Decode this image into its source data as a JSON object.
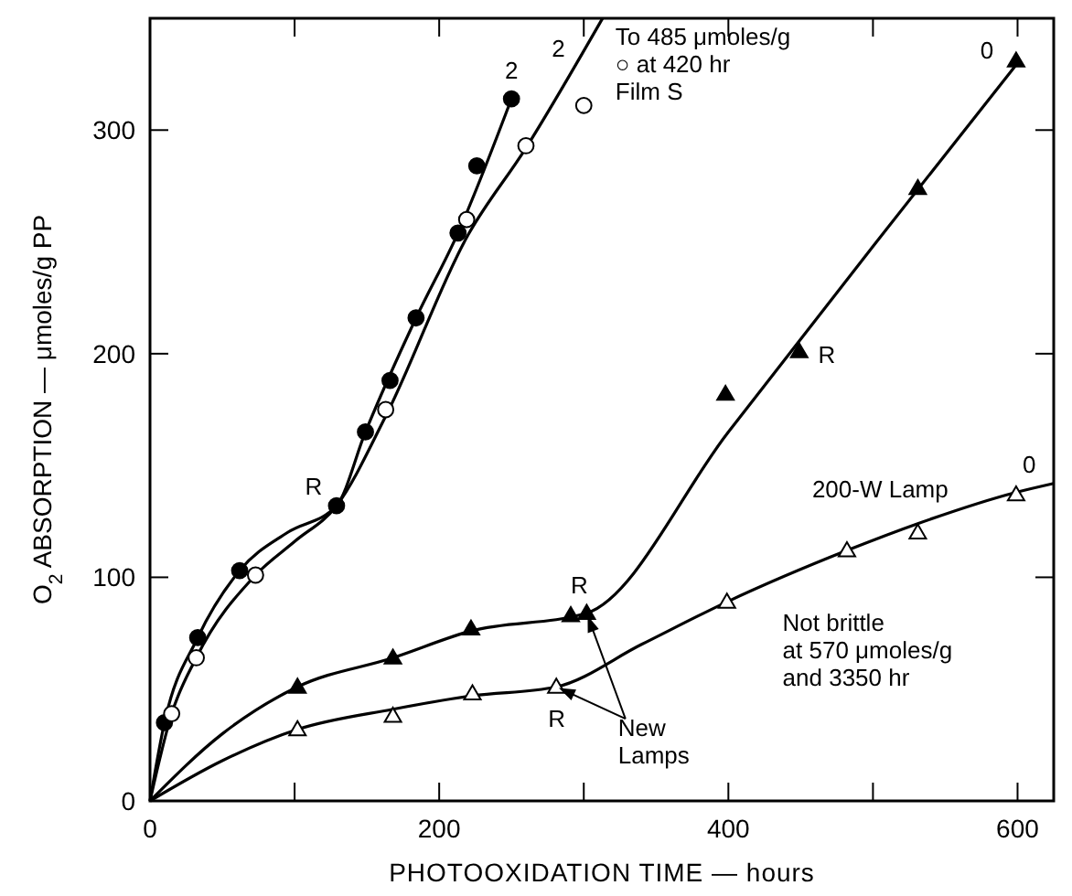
{
  "chart_data": {
    "type": "scatter",
    "xlabel": "PHOTOOXIDATION TIME — hours",
    "ylabel": "O$_{2}$ ABSORPTION — μmoles/g PP",
    "xlim": [
      0,
      625
    ],
    "ylim": [
      0,
      350
    ],
    "xticks": [
      0,
      {
        "value": 100,
        "label": null
      },
      200,
      {
        "value": 300,
        "label": null
      },
      400,
      {
        "value": 500,
        "label": null
      },
      600
    ],
    "yticks": [
      0,
      100,
      200,
      300
    ],
    "grid": false,
    "series": [
      {
        "type": "line",
        "color": "#000000",
        "marker": "none",
        "x": [
          0,
          10,
          33,
          62,
          95,
          129,
          149,
          184,
          213,
          250
        ],
        "values": [
          0,
          35,
          73,
          103,
          120,
          132,
          165,
          216,
          254,
          314
        ]
      },
      {
        "type": "line",
        "color": "#000000",
        "marker": "none",
        "x": [
          0,
          15,
          32,
          73,
          100,
          129,
          163,
          219,
          260,
          313
        ],
        "values": [
          0,
          39,
          64,
          101,
          116,
          132,
          172,
          252,
          292,
          350
        ]
      },
      {
        "type": "line",
        "color": "#000000",
        "marker": "none",
        "x": [
          0,
          50,
          102,
          168,
          222,
          302,
          400,
          500,
          600
        ],
        "values": [
          0,
          30,
          51,
          64,
          76,
          84,
          165,
          248,
          330
        ]
      },
      {
        "type": "line",
        "color": "#000000",
        "marker": "none",
        "x": [
          0,
          50,
          102,
          168,
          223,
          281,
          340,
          399,
          482,
          531,
          599,
          625
        ],
        "values": [
          0,
          18,
          32,
          41,
          47,
          51,
          70,
          89,
          112,
          124,
          138,
          142
        ]
      },
      {
        "color": "#000000",
        "marker": "circle",
        "x": [
          10,
          33,
          62,
          129,
          149,
          166,
          184,
          213,
          226,
          250
        ],
        "values": [
          35,
          73,
          103,
          132,
          165,
          188,
          216,
          254,
          284,
          314
        ]
      },
      {
        "color": "#ffffff",
        "marker": "circle",
        "x": [
          15,
          32,
          73,
          163,
          219,
          260,
          300
        ],
        "values": [
          39,
          64,
          101,
          175,
          260,
          293,
          311
        ]
      },
      {
        "color": "#000000",
        "marker": "triangle",
        "x": [
          102,
          168,
          222,
          291,
          302,
          398,
          449,
          531,
          599
        ],
        "values": [
          51,
          64,
          77,
          83,
          84,
          182,
          201,
          274,
          331
        ]
      },
      {
        "color": "#ffffff",
        "marker": "triangle",
        "x": [
          102,
          168,
          223,
          281,
          399,
          482,
          531,
          599
        ],
        "values": [
          32,
          38,
          48,
          51,
          89,
          112,
          120,
          137
        ]
      }
    ],
    "annotations": [
      "2",
      "2",
      "To 485 μmoles/g\n○ at 420 hr\nFilm S",
      "0",
      "R",
      "R",
      "0",
      "200-W Lamp",
      "Not brittle\nat 570 μmoles/g\nand 3350 hr",
      "R",
      "R",
      "New\nLamps"
    ]
  }
}
